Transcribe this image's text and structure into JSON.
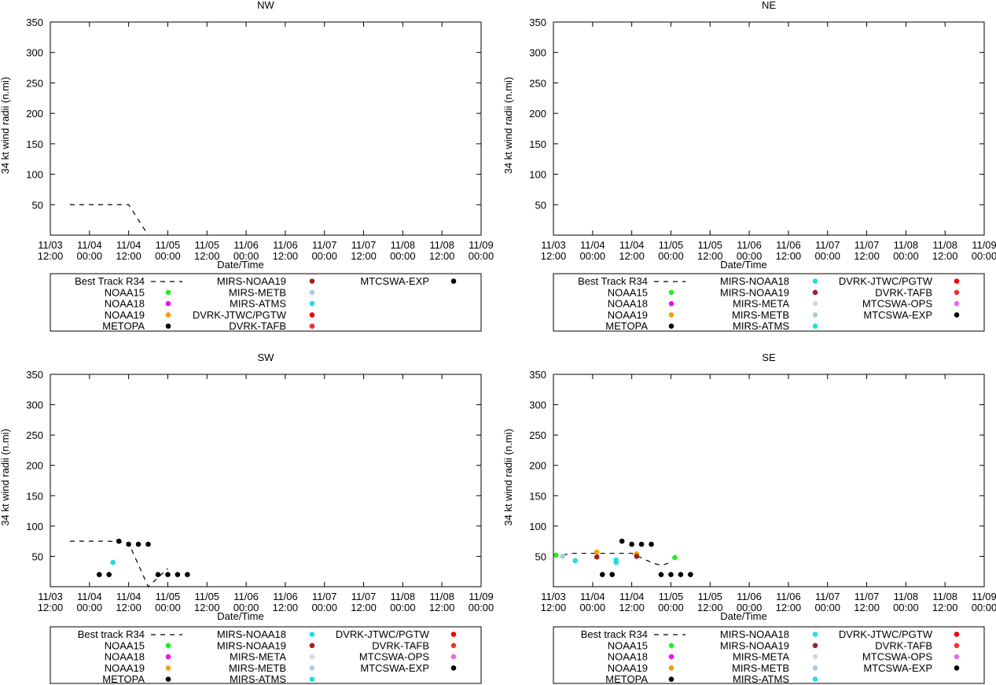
{
  "colors": {
    "NOAA15": "#22ee22",
    "NOAA18": "#ee11ee",
    "NOAA19": "#f5a000",
    "METOPA": "#000000",
    "MIRS-NOAA18": "#22dddd",
    "MIRS-NOAA19": "#a02222",
    "MIRS-META": "#d8d8d8",
    "MIRS-METB": "#a8cfe0",
    "MIRS-ATMS": "#22dddd",
    "DVRK-JTWC/PGTW": "#ee0000",
    "DVRK-TAFB": "#ee3333",
    "MTCSWA-OPS": "#e070e0",
    "MTCSWA-EXP": "#000000"
  },
  "chart_data": [
    {
      "id": "nw",
      "type": "scatter",
      "title": "NW",
      "xlabel": "Date/Time",
      "ylabel": "34 kt wind radii (n.mi)",
      "ylim": [
        0,
        350
      ],
      "yticks": [
        50,
        100,
        150,
        200,
        250,
        300,
        350
      ],
      "xlim": [
        0,
        132
      ],
      "xticks": [
        {
          "day": "11/03",
          "time": "12:00"
        },
        {
          "day": "11/04",
          "time": "00:00"
        },
        {
          "day": "11/04",
          "time": "12:00"
        },
        {
          "day": "11/05",
          "time": "00:00"
        },
        {
          "day": "11/05",
          "time": "12:00"
        },
        {
          "day": "11/06",
          "time": "00:00"
        },
        {
          "day": "11/06",
          "time": "12:00"
        },
        {
          "day": "11/07",
          "time": "00:00"
        },
        {
          "day": "11/07",
          "time": "12:00"
        },
        {
          "day": "11/08",
          "time": "00:00"
        },
        {
          "day": "11/08",
          "time": "12:00"
        },
        {
          "day": "11/09",
          "time": "00:00"
        }
      ],
      "best_track": {
        "label": "Best Track R34",
        "x": [
          6,
          24,
          30
        ],
        "y": [
          50,
          50,
          0
        ]
      },
      "points": [],
      "legend_items": [
        "NOAA15",
        "NOAA18",
        "NOAA19",
        "METOPA",
        "MIRS-NOAA19",
        "MIRS-METB",
        "MIRS-ATMS",
        "DVRK-JTWC/PGTW",
        "DVRK-TAFB",
        "MTCSWA-EXP"
      ]
    },
    {
      "id": "ne",
      "type": "scatter",
      "title": "NE",
      "xlabel": "Date/Time",
      "ylabel": "34 kt wind radii (n.mi)",
      "ylim": [
        0,
        350
      ],
      "yticks": [
        50,
        100,
        150,
        200,
        250,
        300,
        350
      ],
      "xlim": [
        0,
        132
      ],
      "xticks": [
        {
          "day": "11/03",
          "time": "12:00"
        },
        {
          "day": "11/04",
          "time": "00:00"
        },
        {
          "day": "11/04",
          "time": "12:00"
        },
        {
          "day": "11/05",
          "time": "00:00"
        },
        {
          "day": "11/05",
          "time": "12:00"
        },
        {
          "day": "11/06",
          "time": "00:00"
        },
        {
          "day": "11/06",
          "time": "12:00"
        },
        {
          "day": "11/07",
          "time": "00:00"
        },
        {
          "day": "11/07",
          "time": "12:00"
        },
        {
          "day": "11/08",
          "time": "00:00"
        },
        {
          "day": "11/08",
          "time": "12:00"
        },
        {
          "day": "11/09",
          "time": "00:00"
        }
      ],
      "best_track": {
        "label": "Best Track R34",
        "x": [],
        "y": []
      },
      "points": [],
      "legend_items": [
        "NOAA15",
        "NOAA18",
        "NOAA19",
        "METOPA",
        "MIRS-NOAA18",
        "MIRS-NOAA19",
        "MIRS-META",
        "MIRS-METB",
        "MIRS-ATMS",
        "DVRK-JTWC/PGTW",
        "DVRK-TAFB",
        "MTCSWA-OPS",
        "MTCSWA-EXP"
      ]
    },
    {
      "id": "sw",
      "type": "scatter",
      "title": "SW",
      "xlabel": "Date/Time",
      "ylabel": "34 kt wind radii (n.mi)",
      "ylim": [
        0,
        350
      ],
      "yticks": [
        50,
        100,
        150,
        200,
        250,
        300,
        350
      ],
      "xlim": [
        0,
        132
      ],
      "xticks": [
        {
          "day": "11/03",
          "time": "12:00"
        },
        {
          "day": "11/04",
          "time": "00:00"
        },
        {
          "day": "11/04",
          "time": "12:00"
        },
        {
          "day": "11/05",
          "time": "00:00"
        },
        {
          "day": "11/05",
          "time": "12:00"
        },
        {
          "day": "11/06",
          "time": "00:00"
        },
        {
          "day": "11/06",
          "time": "12:00"
        },
        {
          "day": "11/07",
          "time": "00:00"
        },
        {
          "day": "11/07",
          "time": "12:00"
        },
        {
          "day": "11/08",
          "time": "00:00"
        },
        {
          "day": "11/08",
          "time": "12:00"
        },
        {
          "day": "11/09",
          "time": "00:00"
        }
      ],
      "best_track": {
        "label": "Best track R34",
        "x": [
          6,
          18,
          24,
          30,
          36
        ],
        "y": [
          75,
          75,
          72,
          0,
          30
        ]
      },
      "points": [
        {
          "s": "MIRS-ATMS",
          "x": 19.2,
          "y": 40
        },
        {
          "s": "MTCSWA-EXP",
          "x": 15,
          "y": 20
        },
        {
          "s": "MTCSWA-EXP",
          "x": 18,
          "y": 20
        },
        {
          "s": "MTCSWA-EXP",
          "x": 21,
          "y": 75
        },
        {
          "s": "MTCSWA-EXP",
          "x": 24,
          "y": 70
        },
        {
          "s": "MTCSWA-EXP",
          "x": 27,
          "y": 70
        },
        {
          "s": "MTCSWA-EXP",
          "x": 30,
          "y": 70
        },
        {
          "s": "MTCSWA-EXP",
          "x": 33,
          "y": 20
        },
        {
          "s": "MTCSWA-EXP",
          "x": 36,
          "y": 20
        },
        {
          "s": "MTCSWA-EXP",
          "x": 39,
          "y": 20
        },
        {
          "s": "MTCSWA-EXP",
          "x": 42,
          "y": 20
        }
      ],
      "legend_items": [
        "NOAA15",
        "NOAA18",
        "NOAA19",
        "METOPA",
        "MIRS-NOAA18",
        "MIRS-NOAA19",
        "MIRS-META",
        "MIRS-METB",
        "MIRS-ATMS",
        "DVRK-JTWC/PGTW",
        "DVRK-TAFB",
        "MTCSWA-OPS",
        "MTCSWA-EXP"
      ]
    },
    {
      "id": "se",
      "type": "scatter",
      "title": "SE",
      "xlabel": "Date/Time",
      "ylabel": "34 kt wind radii (n.mi)",
      "ylim": [
        0,
        350
      ],
      "yticks": [
        50,
        100,
        150,
        200,
        250,
        300,
        350
      ],
      "xlim": [
        0,
        132
      ],
      "xticks": [
        {
          "day": "11/03",
          "time": "12:00"
        },
        {
          "day": "11/04",
          "time": "00:00"
        },
        {
          "day": "11/04",
          "time": "12:00"
        },
        {
          "day": "11/05",
          "time": "00:00"
        },
        {
          "day": "11/05",
          "time": "12:00"
        },
        {
          "day": "11/06",
          "time": "00:00"
        },
        {
          "day": "11/06",
          "time": "12:00"
        },
        {
          "day": "11/07",
          "time": "00:00"
        },
        {
          "day": "11/07",
          "time": "12:00"
        },
        {
          "day": "11/08",
          "time": "00:00"
        },
        {
          "day": "11/08",
          "time": "12:00"
        },
        {
          "day": "11/09",
          "time": "00:00"
        }
      ],
      "best_track": {
        "label": "Best track R34",
        "x": [
          0,
          6,
          12,
          18,
          24,
          30,
          33,
          36
        ],
        "y": [
          50,
          55,
          55,
          55,
          55,
          40,
          35,
          40
        ]
      },
      "points": [
        {
          "s": "NOAA15",
          "x": 0.8,
          "y": 52
        },
        {
          "s": "MIRS-METB",
          "x": 2.8,
          "y": 50
        },
        {
          "s": "MIRS-ATMS",
          "x": 6.7,
          "y": 43
        },
        {
          "s": "NOAA19",
          "x": 13.3,
          "y": 57
        },
        {
          "s": "MIRS-NOAA19",
          "x": 13.3,
          "y": 49
        },
        {
          "s": "MTCSWA-EXP",
          "x": 15,
          "y": 20
        },
        {
          "s": "MTCSWA-EXP",
          "x": 18,
          "y": 20
        },
        {
          "s": "MIRS-ATMS",
          "x": 19.2,
          "y": 44
        },
        {
          "s": "MIRS-ATMS",
          "x": 19.2,
          "y": 40
        },
        {
          "s": "MTCSWA-EXP",
          "x": 21,
          "y": 75
        },
        {
          "s": "MTCSWA-EXP",
          "x": 24,
          "y": 70
        },
        {
          "s": "NOAA19",
          "x": 25.5,
          "y": 54
        },
        {
          "s": "MIRS-NOAA19",
          "x": 25.5,
          "y": 50
        },
        {
          "s": "MTCSWA-EXP",
          "x": 27,
          "y": 70
        },
        {
          "s": "MTCSWA-EXP",
          "x": 30,
          "y": 70
        },
        {
          "s": "MTCSWA-EXP",
          "x": 33,
          "y": 20
        },
        {
          "s": "MTCSWA-EXP",
          "x": 36,
          "y": 20
        },
        {
          "s": "NOAA15",
          "x": 37.2,
          "y": 48
        },
        {
          "s": "MTCSWA-EXP",
          "x": 39,
          "y": 20
        },
        {
          "s": "MTCSWA-EXP",
          "x": 42,
          "y": 20
        }
      ],
      "legend_items": [
        "NOAA15",
        "NOAA18",
        "NOAA19",
        "METOPA",
        "MIRS-NOAA18",
        "MIRS-NOAA19",
        "MIRS-META",
        "MIRS-METB",
        "MIRS-ATMS",
        "DVRK-JTWC/PGTW",
        "DVRK-TAFB",
        "MTCSWA-OPS",
        "MTCSWA-EXP"
      ]
    }
  ]
}
